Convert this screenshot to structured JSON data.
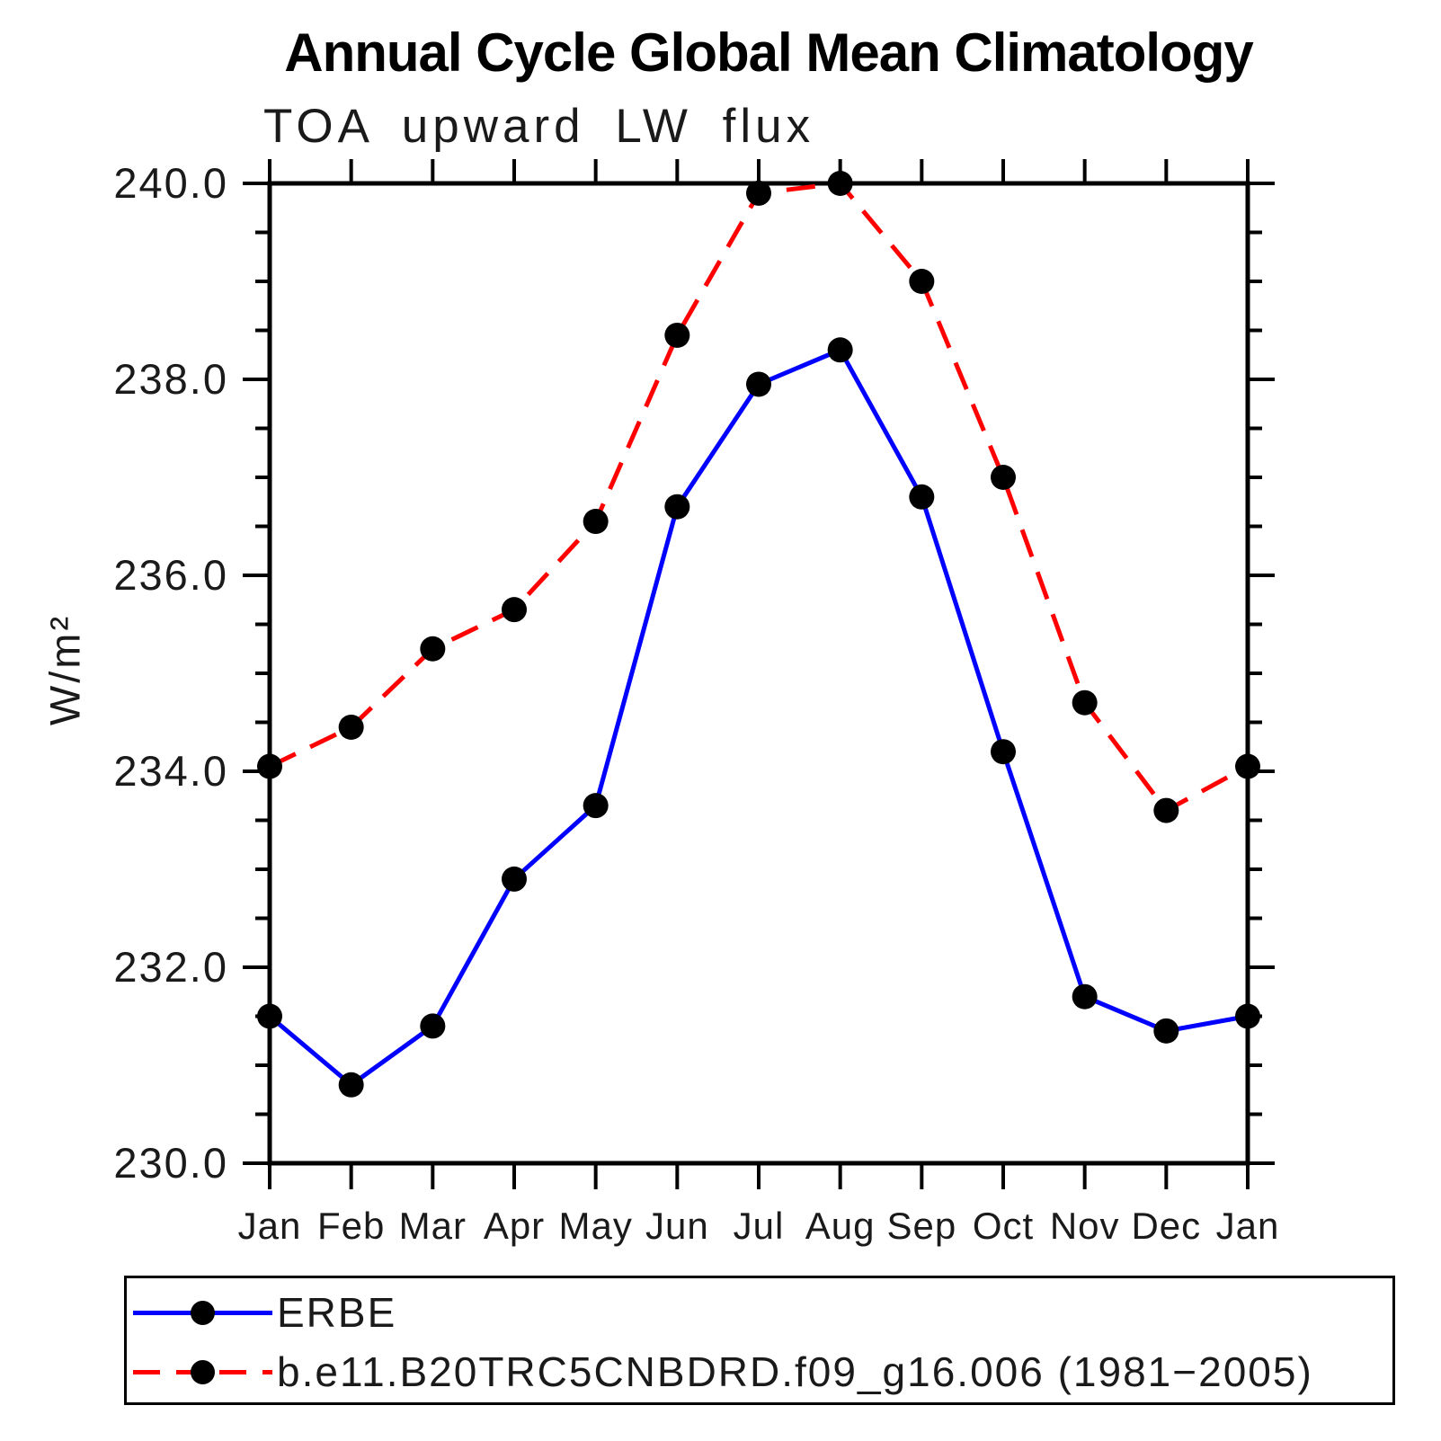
{
  "title": "Annual Cycle Global Mean Climatology",
  "subtitle": "TOA upward LW flux",
  "ylabel": "W/m²",
  "chart_data": {
    "type": "line",
    "categories": [
      "Jan",
      "Feb",
      "Mar",
      "Apr",
      "May",
      "Jun",
      "Jul",
      "Aug",
      "Sep",
      "Oct",
      "Nov",
      "Dec",
      "Jan"
    ],
    "series": [
      {
        "name": "ERBE",
        "color": "#0000ff",
        "style": "solid",
        "values": [
          231.5,
          230.8,
          231.4,
          232.9,
          233.65,
          236.7,
          237.95,
          238.3,
          236.8,
          234.2,
          231.7,
          231.35,
          231.5
        ]
      },
      {
        "name": "b.e11.B20TRC5CNBDRD.f09_g16.006 (1981−2005)",
        "color": "#ff0000",
        "style": "dashed",
        "values": [
          234.05,
          234.45,
          235.25,
          235.65,
          236.55,
          238.45,
          239.9,
          240.0,
          239.0,
          237.0,
          234.7,
          233.6,
          234.05
        ]
      }
    ],
    "marker": "circle",
    "marker_color": "#000000",
    "ylim": [
      230.0,
      240.0
    ],
    "ytick_major": 2.0,
    "ytick_minor": 0.5,
    "ytick_labels": [
      "240.0",
      "238.0",
      "236.0",
      "234.0",
      "232.0",
      "230.0"
    ],
    "grid": "off",
    "legend_position": "bottom",
    "axis_color": "#000000"
  }
}
